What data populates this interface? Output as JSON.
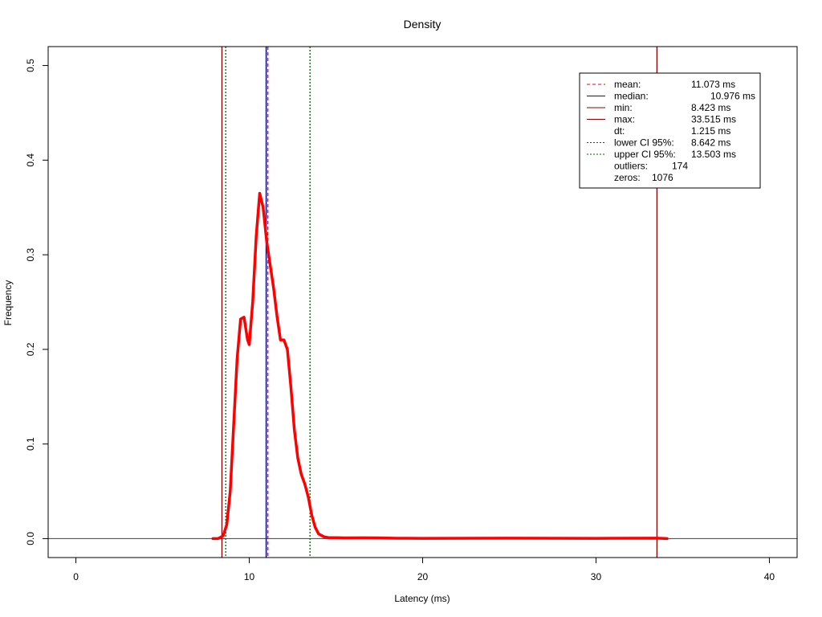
{
  "chart_data": {
    "type": "line",
    "title": "Density",
    "xlabel": "Latency (ms)",
    "ylabel": "Frequency",
    "xlim": [
      -1.6,
      41.6
    ],
    "ylim": [
      -0.02,
      0.52
    ],
    "x_ticks": [
      0,
      10,
      20,
      30,
      40
    ],
    "y_ticks": [
      0.0,
      0.1,
      0.2,
      0.3,
      0.4,
      0.5
    ],
    "x_tick_labels": [
      "0",
      "10",
      "20",
      "30",
      "40"
    ],
    "y_tick_labels": [
      "0.0",
      "0.1",
      "0.2",
      "0.3",
      "0.4",
      "0.5"
    ],
    "grid": false,
    "legend_position": "top-right",
    "series": [
      {
        "color": "#ff0000",
        "x": [
          7.9,
          8.2,
          8.5,
          8.7,
          8.9,
          9.1,
          9.3,
          9.5,
          9.7,
          9.9,
          10.0,
          10.2,
          10.4,
          10.6,
          10.8,
          11.0,
          11.2,
          11.4,
          11.6,
          11.8,
          12.0,
          12.2,
          12.4,
          12.6,
          12.8,
          13.0,
          13.2,
          13.4,
          13.6,
          13.8,
          14.0,
          14.3,
          14.6,
          15.0,
          15.5,
          16.5,
          17.5,
          18.5,
          20.0,
          25.0,
          30.0,
          33.5,
          34.1
        ],
        "y": [
          0.0,
          0.0,
          0.003,
          0.015,
          0.05,
          0.12,
          0.19,
          0.232,
          0.234,
          0.21,
          0.205,
          0.25,
          0.32,
          0.365,
          0.35,
          0.315,
          0.29,
          0.265,
          0.235,
          0.21,
          0.21,
          0.2,
          0.16,
          0.115,
          0.085,
          0.068,
          0.058,
          0.044,
          0.025,
          0.012,
          0.005,
          0.002,
          0.001,
          0.001,
          0.0008,
          0.0009,
          0.0008,
          0.0004,
          0.0003,
          0.0005,
          0.0003,
          0.0005,
          0.0
        ]
      }
    ],
    "vlines": [
      {
        "name": "min",
        "x": 8.423,
        "color": "#8b0000",
        "style": "solid"
      },
      {
        "name": "lower-ci",
        "x": 8.642,
        "color": "#006400",
        "style": "dotted"
      },
      {
        "name": "median",
        "x": 10.976,
        "color": "#0000ff",
        "style": "solid"
      },
      {
        "name": "mean",
        "x": 11.073,
        "color": "#ff0000",
        "style": "dashed"
      },
      {
        "name": "upper-ci",
        "x": 13.503,
        "color": "#006400",
        "style": "dotted"
      },
      {
        "name": "max",
        "x": 33.515,
        "color": "#8b0000",
        "style": "solid"
      }
    ],
    "legend": [
      {
        "label": "mean:",
        "value": "11.073 ms",
        "color": "#ff0000",
        "style": "dashed"
      },
      {
        "label": "median:",
        "value": "10.976 ms",
        "color": "#0000ff",
        "style": "solid"
      },
      {
        "label": "min:",
        "value": "8.423 ms",
        "color": "#8b0000",
        "style": "solid"
      },
      {
        "label": "max:",
        "value": "33.515 ms",
        "color": "#8b0000",
        "style": "solid"
      },
      {
        "label": "dt:",
        "value": "1.215 ms",
        "color": "",
        "style": "none"
      },
      {
        "label": "lower CI 95%:",
        "value": "8.642 ms",
        "color": "#006400",
        "style": "dotted"
      },
      {
        "label": "upper CI 95%:",
        "value": "13.503 ms",
        "color": "#006400",
        "style": "dotted"
      },
      {
        "label": "outliers:",
        "value": "174",
        "color": "",
        "style": "none"
      },
      {
        "label": "zeros:",
        "value": "1076",
        "color": "",
        "style": "none"
      }
    ]
  }
}
